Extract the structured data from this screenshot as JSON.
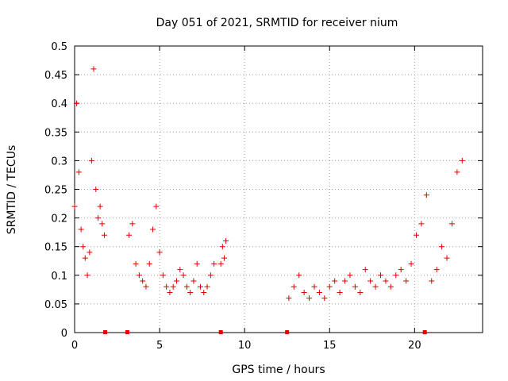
{
  "chart_data": {
    "type": "scatter",
    "title": "Day 051 of 2021, SRMTID for receiver nium",
    "xlabel": "GPS time / hours",
    "ylabel": "SRMTID / TECUs",
    "xlim": [
      0,
      24
    ],
    "ylim": [
      0,
      0.5
    ],
    "xticks": [
      0,
      5,
      10,
      15,
      20
    ],
    "xtick_labels": [
      "0",
      "5",
      "10",
      "15",
      "20"
    ],
    "yticks": [
      0,
      0.05,
      0.1,
      0.15,
      0.2,
      0.25,
      0.3,
      0.35,
      0.4,
      0.45,
      0.5
    ],
    "ytick_labels": [
      "0",
      "0.05",
      "0.1",
      "0.15",
      "0.2",
      "0.25",
      "0.3",
      "0.35",
      "0.4",
      "0.45",
      "0.5"
    ],
    "grid": true,
    "marker": "+",
    "color": "#e00000",
    "series": [
      {
        "name": "SRMTID",
        "segments": [
          {
            "x": [
              0.0,
              0.12,
              0.25,
              0.38,
              0.5,
              0.62,
              0.75,
              0.88,
              1.0,
              1.12,
              1.25,
              1.38,
              1.5,
              1.62,
              1.75
            ],
            "y": [
              0.22,
              0.4,
              0.28,
              0.18,
              0.15,
              0.13,
              0.1,
              0.14,
              0.3,
              0.46,
              0.25,
              0.2,
              0.22,
              0.19,
              0.17
            ]
          },
          {
            "x": [
              3.2,
              3.4,
              3.6,
              3.8,
              4.0,
              4.2,
              4.4,
              4.6,
              4.8,
              5.0,
              5.2,
              5.4,
              5.6,
              5.8,
              6.0,
              6.2,
              6.4,
              6.6,
              6.8,
              7.0,
              7.2,
              7.4,
              7.6,
              7.8,
              8.0,
              8.2
            ],
            "y": [
              0.17,
              0.19,
              0.12,
              0.1,
              0.09,
              0.08,
              0.12,
              0.18,
              0.22,
              0.14,
              0.1,
              0.08,
              0.07,
              0.08,
              0.09,
              0.11,
              0.1,
              0.08,
              0.07,
              0.09,
              0.12,
              0.08,
              0.07,
              0.08,
              0.1,
              0.12
            ]
          },
          {
            "x": [
              8.6,
              8.7,
              8.8,
              8.9
            ],
            "y": [
              0.12,
              0.15,
              0.13,
              0.16
            ]
          },
          {
            "x": [
              12.6,
              12.9,
              13.2,
              13.5,
              13.8,
              14.1,
              14.4,
              14.7,
              15.0,
              15.3,
              15.6,
              15.9,
              16.2,
              16.5,
              16.8,
              17.1,
              17.4,
              17.7,
              18.0,
              18.3,
              18.6,
              18.9,
              19.2,
              19.5,
              19.8,
              20.1,
              20.4,
              20.7,
              21.0,
              21.3,
              21.6,
              21.9,
              22.2,
              22.5,
              22.8
            ],
            "y": [
              0.06,
              0.08,
              0.1,
              0.07,
              0.06,
              0.08,
              0.07,
              0.06,
              0.08,
              0.09,
              0.07,
              0.09,
              0.1,
              0.08,
              0.07,
              0.11,
              0.09,
              0.08,
              0.1,
              0.09,
              0.08,
              0.1,
              0.11,
              0.09,
              0.12,
              0.17,
              0.19,
              0.24,
              0.09,
              0.11,
              0.15,
              0.13,
              0.19,
              0.28,
              0.3
            ]
          }
        ]
      }
    ],
    "gap_markers_x": [
      1.8,
      3.1,
      8.6,
      12.5,
      20.6
    ]
  }
}
